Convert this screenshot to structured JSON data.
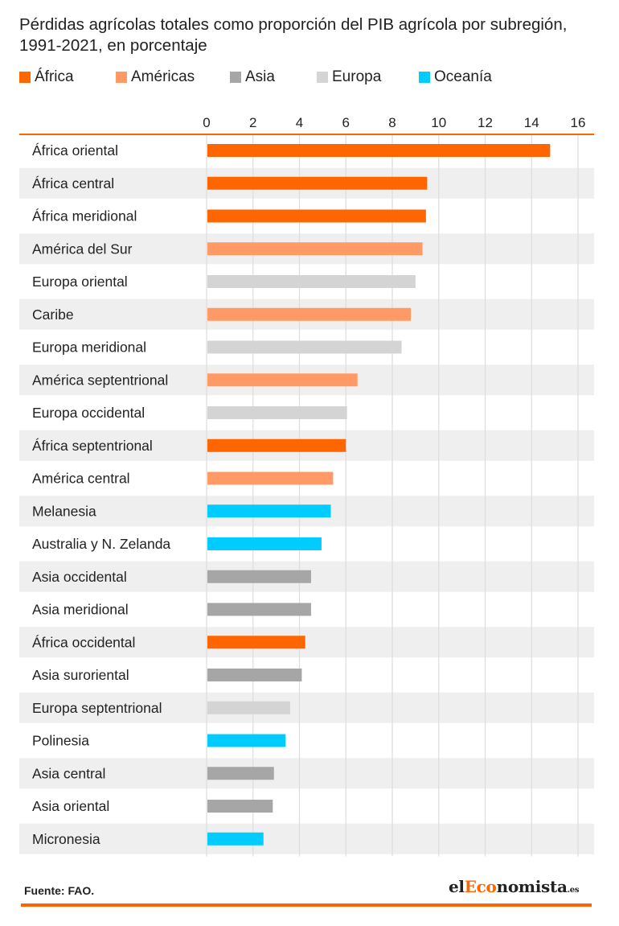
{
  "title": "Pérdidas agrícolas totales como proporción del PIB agrícola por subregión, 1991-2021, en porcentaje",
  "source": "Fuente: FAO.",
  "logo": {
    "part1": "el",
    "part2": "Eco",
    "part3": "nomista",
    "part4": ".es"
  },
  "colors": {
    "accent": "#ff6600",
    "África": "#ff6600",
    "Américas": "#ff9966",
    "Asia": "#a6a6a6",
    "Europa": "#d4d4d4",
    "Oceanía": "#00ccff"
  },
  "legend": [
    "África",
    "Américas",
    "Asia",
    "Europa",
    "Oceanía"
  ],
  "chart_data": {
    "type": "bar",
    "orientation": "horizontal",
    "title": "Pérdidas agrícolas totales como proporción del PIB agrícola por subregión, 1991-2021, en porcentaje",
    "xlim": [
      0,
      16
    ],
    "xticks": [
      "0",
      "2",
      "4",
      "6",
      "8",
      "10",
      "12",
      "14",
      "16"
    ],
    "grid": true,
    "legend_position": "top",
    "categories": [
      "África oriental",
      "África central",
      "África meridional",
      "América del Sur",
      "Europa oriental",
      "Caribe",
      "Europa meridional",
      "América septentrional",
      "Europa occidental",
      "África septentrional",
      "América central",
      "Melanesia",
      "Australia y N. Zelanda",
      "Asia occidental",
      "Asia meridional",
      "África occidental",
      "Asia suroriental",
      "Europa septentrional",
      "Polinesia",
      "Asia central",
      "Asia oriental",
      "Micronesia"
    ],
    "values": [
      14.8,
      9.5,
      9.45,
      9.3,
      9.0,
      8.8,
      8.4,
      6.5,
      6.05,
      6.0,
      5.45,
      5.35,
      4.95,
      4.5,
      4.5,
      4.25,
      4.1,
      3.6,
      3.4,
      2.9,
      2.85,
      2.45
    ],
    "groups": [
      "África",
      "África",
      "África",
      "Américas",
      "Europa",
      "Américas",
      "Europa",
      "Américas",
      "Europa",
      "África",
      "Américas",
      "Oceanía",
      "Oceanía",
      "Asia",
      "Asia",
      "África",
      "Asia",
      "Europa",
      "Oceanía",
      "Asia",
      "Asia",
      "Oceanía"
    ]
  }
}
